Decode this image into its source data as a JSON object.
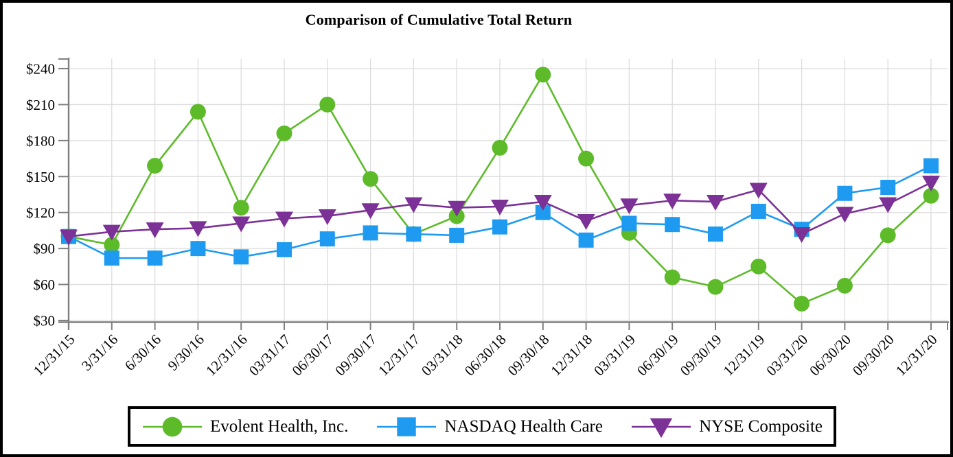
{
  "title": "Comparison of Cumulative Total Return",
  "chart_data": {
    "type": "line",
    "title": "Comparison of Cumulative Total Return",
    "categories": [
      "12/31/15",
      "3/31/16",
      "6/30/16",
      "9/30/16",
      "12/31/16",
      "03/31/17",
      "06/30/17",
      "09/30/17",
      "12/31/17",
      "03/31/18",
      "06/30/18",
      "09/30/18",
      "12/31/18",
      "03/31/19",
      "06/30/19",
      "09/30/19",
      "12/31/19",
      "03/31/20",
      "06/30/20",
      "09/30/20",
      "12/31/20"
    ],
    "series": [
      {
        "name": "Evolent Health, Inc.",
        "marker": "circle",
        "color": "#5DBB2A",
        "values": [
          100,
          93,
          159,
          204,
          124,
          186,
          210,
          148,
          102,
          117,
          174,
          235,
          165,
          103,
          66,
          58,
          75,
          44,
          59,
          101,
          134
        ]
      },
      {
        "name": "NASDAQ Health Care",
        "marker": "square",
        "color": "#1E9BF0",
        "values": [
          100,
          82,
          82,
          90,
          83,
          89,
          98,
          103,
          102,
          101,
          108,
          120,
          97,
          111,
          110,
          102,
          121,
          106,
          136,
          141,
          159
        ]
      },
      {
        "name": "NYSE Composite",
        "marker": "triangle-down",
        "color": "#7C3196",
        "values": [
          100,
          104,
          106,
          107,
          111,
          115,
          117,
          122,
          127,
          124,
          125,
          129,
          113,
          126,
          130,
          129,
          139,
          102,
          119,
          127,
          145
        ]
      }
    ],
    "xlabel": "",
    "ylabel": "",
    "yticks": [
      30,
      60,
      90,
      120,
      150,
      180,
      210,
      240
    ],
    "ytick_labels": [
      "$30",
      "$60",
      "$90",
      "$120",
      "$150",
      "$180",
      "$210",
      "$240"
    ],
    "ylim": [
      30,
      248
    ],
    "grid": true,
    "legend_position": "bottom",
    "axis_color": "#7F7F7F",
    "grid_color": "#DCDCDC",
    "border_color": "#000000",
    "background_color": "#FFFFFF"
  }
}
